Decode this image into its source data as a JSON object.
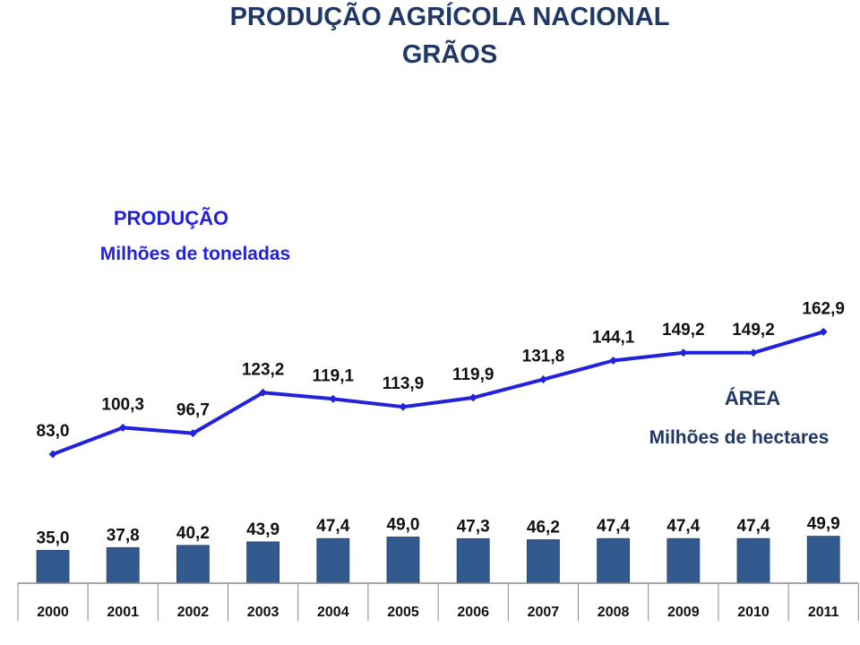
{
  "chart_data": {
    "type": "bar",
    "title": "PRODUÇÃO AGRÍCOLA NACIONAL",
    "subtitle": "GRÃOS",
    "categories": [
      "2000",
      "2001",
      "2002",
      "2003",
      "2004",
      "2005",
      "2006",
      "2007",
      "2008",
      "2009",
      "2010",
      "2011"
    ],
    "series": [
      {
        "name": "PRODUÇÃO",
        "unit": "Milhões de toneladas",
        "type": "line",
        "color": "#2222dd",
        "values": [
          83.0,
          100.3,
          96.7,
          123.2,
          119.1,
          113.9,
          119.9,
          131.8,
          144.1,
          149.2,
          149.2,
          162.9
        ],
        "labels": [
          "83,0",
          "100,3",
          "96,7",
          "123,2",
          "119,1",
          "113,9",
          "119,9",
          "131,8",
          "144,1",
          "149,2",
          "149,2",
          "162,9"
        ]
      },
      {
        "name": "ÁREA",
        "unit": "Milhões de hectares",
        "type": "bar",
        "color": "#335a8e",
        "values": [
          35.0,
          37.8,
          40.2,
          43.9,
          47.4,
          49.0,
          47.3,
          46.2,
          47.4,
          47.4,
          47.4,
          49.9
        ],
        "labels": [
          "35,0",
          "37,8",
          "40,2",
          "43,9",
          "47,4",
          "49,0",
          "47,3",
          "46,2",
          "47,4",
          "47,4",
          "47,4",
          "49,9"
        ]
      }
    ],
    "grid": false,
    "axis_color": "#888888"
  }
}
